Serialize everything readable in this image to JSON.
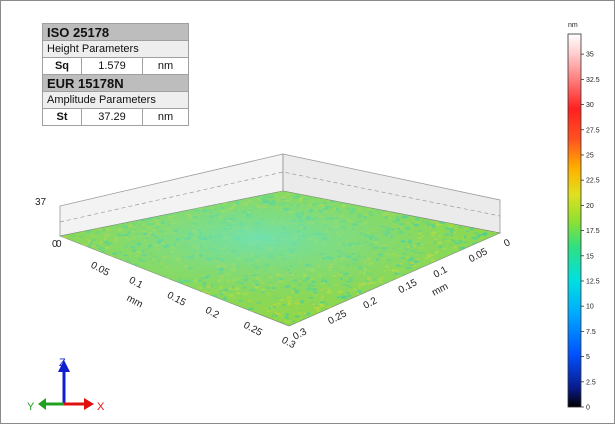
{
  "table": {
    "standard1": "ISO 25178",
    "group1": "Height Parameters",
    "param1": {
      "name": "Sq",
      "value": "1.579",
      "unit": "nm"
    },
    "standard2": "EUR 15178N",
    "group2": "Amplitude Parameters",
    "param2": {
      "name": "St",
      "value": "37.29",
      "unit": "nm"
    }
  },
  "chart_data": {
    "type": "heatmap",
    "title": "",
    "z_axis": {
      "label": "37",
      "range": [
        0,
        37
      ]
    },
    "x_axis": {
      "unit": "mm",
      "ticks": [
        "0.05",
        "0.1",
        "0.15",
        "0.2",
        "0.25",
        "0.3"
      ],
      "origin_label": "0"
    },
    "y_axis": {
      "unit": "mm",
      "ticks": [
        "0",
        "0.05",
        "0.1",
        "0.15",
        "0.2",
        "0.25",
        "0.3"
      ]
    },
    "origin_label": "0",
    "surface_description_colors": [
      "#3fcfa0",
      "#8fdc3a",
      "#c8dc2a"
    ],
    "colorbar": {
      "unit": "nm",
      "ticks": [
        "0",
        "2.5",
        "5",
        "7.5",
        "10",
        "12.5",
        "15",
        "17.5",
        "20",
        "22.5",
        "25",
        "27.5",
        "30",
        "32.5",
        "35"
      ],
      "range": [
        0,
        37
      ],
      "colors": [
        "#000000",
        "#0a1a8a",
        "#0050ff",
        "#00aaff",
        "#00e0e0",
        "#30e080",
        "#90e030",
        "#e0e020",
        "#ffb000",
        "#ff5020",
        "#ff2020",
        "#ff8080",
        "#ffd0d0",
        "#ffffff"
      ]
    },
    "axes_triad": {
      "z": "Z",
      "y": "Y",
      "x": "X"
    }
  }
}
